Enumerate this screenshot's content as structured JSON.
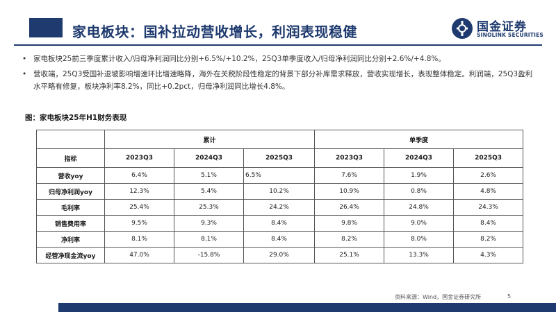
{
  "header": {
    "title": "家电板块：国补拉动营收增长，利润表现稳健",
    "accent_color": "#1e3a6e",
    "logo": {
      "icon": "guojin-logo-icon",
      "name_cn": "国金证券",
      "name_en": "SINOLINK SECURITIES"
    }
  },
  "bullets": [
    {
      "text": "家电板块25前三季度累计收入/归母净利润同比分别+6.5%/+10.2%，25Q3单季度收入/归母净利润同比分别+2.6%/+4.8%。"
    },
    {
      "text": "营收端，25Q3受国补退坡影响增速环比增速略降，海外在关税阶段性稳定的背景下部分补库需求释放，营收实现增长，表现整体稳定。利润端，25Q3盈利水平略有修复，板块净利率8.2%，同比+0.2pct，归母净利润同比增长4.8%。"
    }
  ],
  "figure": {
    "title": "图：家电板块25年H1财务表现",
    "group_headers": [
      "累计",
      "单季度"
    ],
    "corner_label": "指标",
    "sub_headers": [
      "2023Q3",
      "2024Q3",
      "2025Q3",
      "2023Q3",
      "2024Q3",
      "2025Q3"
    ],
    "rows": [
      {
        "label": "营收yoy",
        "values": [
          "6.4%",
          "5.1%",
          "6.5%",
          "7.6%",
          "1.9%",
          "2.6%"
        ]
      },
      {
        "label": "归母净利润yoy",
        "values": [
          "12.3%",
          "5.4%",
          "10.2%",
          "10.9%",
          "0.8%",
          "4.8%"
        ]
      },
      {
        "label": "毛利率",
        "values": [
          "25.4%",
          "25.3%",
          "24.2%",
          "26.4%",
          "24.8%",
          "24.3%"
        ]
      },
      {
        "label": "销售费用率",
        "values": [
          "9.5%",
          "9.3%",
          "8.4%",
          "9.8%",
          "9.0%",
          "8.4%"
        ]
      },
      {
        "label": "净利率",
        "values": [
          "8.1%",
          "8.1%",
          "8.4%",
          "8.2%",
          "8.0%",
          "8.2%"
        ]
      },
      {
        "label": "经营净现金流yoy",
        "values": [
          "47.0%",
          "-15.8%",
          "29.0%",
          "25.1%",
          "13.3%",
          "4.3%"
        ]
      }
    ]
  },
  "footer": {
    "source": "资料来源：Wind，国金证券研究所",
    "page_number": "5"
  }
}
